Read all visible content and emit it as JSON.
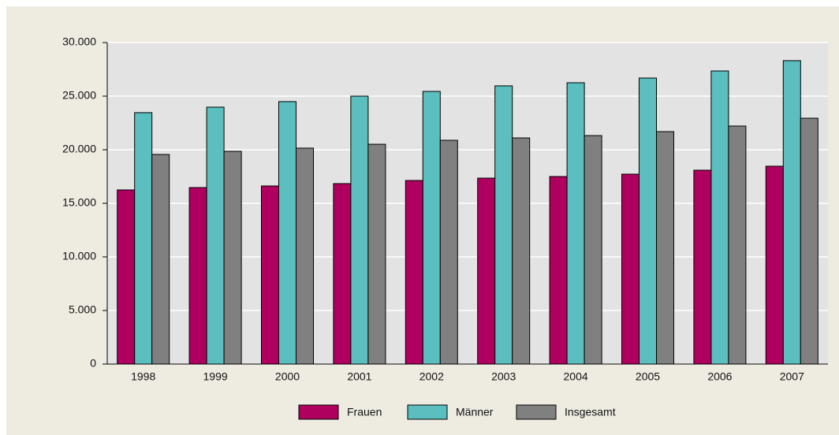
{
  "chart_data": {
    "type": "bar",
    "categories": [
      "1998",
      "1999",
      "2000",
      "2001",
      "2002",
      "2003",
      "2004",
      "2005",
      "2006",
      "2007"
    ],
    "series": [
      {
        "name": "Frauen",
        "color": "#b0005f",
        "values": [
          16250,
          16470,
          16620,
          16840,
          17130,
          17350,
          17500,
          17720,
          18090,
          18460
        ]
      },
      {
        "name": "Männer",
        "color": "#5bbfc0",
        "values": [
          23460,
          23970,
          24490,
          25000,
          25440,
          25960,
          26250,
          26690,
          27350,
          28310
        ]
      },
      {
        "name": "Insgesamt",
        "color": "#808080",
        "values": [
          19560,
          19850,
          20150,
          20510,
          20880,
          21100,
          21320,
          21690,
          22210,
          22940
        ]
      }
    ],
    "ylim": [
      0,
      30000
    ],
    "yticks": [
      0,
      {
        "value": 5000,
        "label": "5.000"
      },
      {
        "value": 10000,
        "label": "10.000"
      },
      {
        "value": 15000,
        "label": "15.000"
      },
      {
        "value": 20000,
        "label": "20.000"
      },
      {
        "value": 25000,
        "label": "25.000"
      },
      {
        "value": 30000,
        "label": "30.000"
      }
    ],
    "grid": true,
    "legend": "bottom"
  }
}
